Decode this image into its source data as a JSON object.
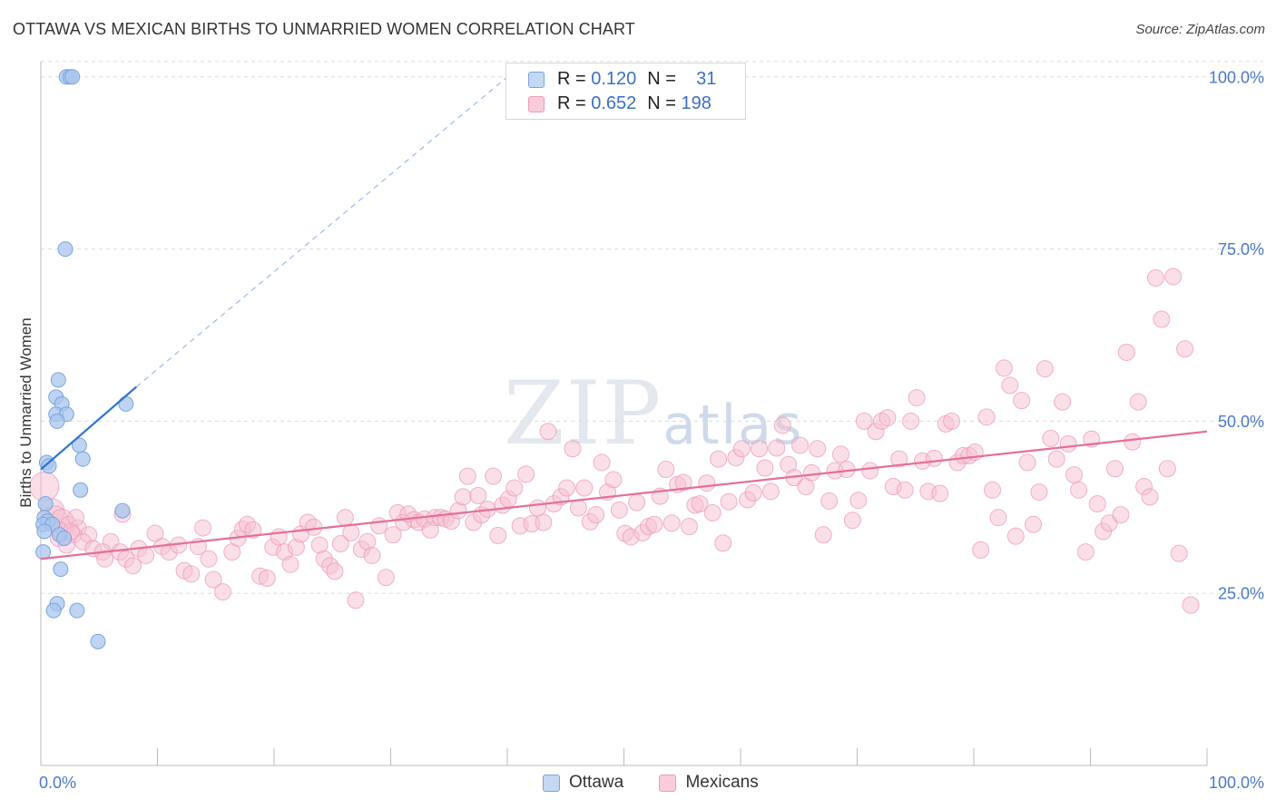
{
  "header": {
    "title": "OTTAWA VS MEXICAN BIRTHS TO UNMARRIED WOMEN CORRELATION CHART",
    "source": "Source: ZipAtlas.com"
  },
  "watermark": {
    "big": "ZIP",
    "small": "atlas"
  },
  "legend": {
    "rows": [
      {
        "r_label": "R =",
        "r_value": "0.120",
        "n_label": "N =",
        "n_value": "31"
      },
      {
        "r_label": "R =",
        "r_value": "0.652",
        "n_label": "N =",
        "n_value": "198"
      }
    ]
  },
  "bottom_legend": {
    "ottawa": "Ottawa",
    "mexicans": "Mexicans"
  },
  "colors": {
    "ottawa_fill": "#aac6ee",
    "ottawa_stroke": "#7aa3dd",
    "ottawa_line": "#2e72cf",
    "mexicans_fill": "#f6bfd2",
    "mexicans_stroke": "#ec9ab8",
    "mexicans_line": "#e46f9a",
    "tick_text": "#4a78c8",
    "grid": "#dcdcdc"
  },
  "chart_data": {
    "type": "scatter",
    "title": "OTTAWA VS MEXICAN BIRTHS TO UNMARRIED WOMEN CORRELATION CHART",
    "xlabel": "",
    "ylabel": "Births to Unmarried Women",
    "xlim": [
      0,
      100
    ],
    "ylim": [
      0,
      103
    ],
    "x_ticks": [
      {
        "value": 0,
        "label": "0.0%"
      },
      {
        "value": 100,
        "label": "100.0%"
      }
    ],
    "x_minor_ticks": [
      10,
      20,
      30,
      40,
      50,
      60,
      70,
      80,
      90
    ],
    "y_ticks": [
      {
        "value": 25,
        "label": "25.0%"
      },
      {
        "value": 50,
        "label": "50.0%"
      },
      {
        "value": 75,
        "label": "75.0%"
      },
      {
        "value": 100,
        "label": "100.0%"
      }
    ],
    "grid": "horizontal dashed",
    "legend_position": "top-center",
    "series": [
      {
        "name": "Ottawa",
        "R": 0.12,
        "N": 31,
        "trend": {
          "x0": 0,
          "y0": 43,
          "x1": 8.2,
          "y1": 55,
          "dashed_to": [
            40,
            100
          ]
        },
        "points": [
          [
            2.2,
            100
          ],
          [
            2.5,
            100
          ],
          [
            2.7,
            100
          ],
          [
            2.1,
            75
          ],
          [
            1.5,
            56
          ],
          [
            1.3,
            53.5
          ],
          [
            1.8,
            52.5
          ],
          [
            1.3,
            51
          ],
          [
            2.2,
            51
          ],
          [
            1.4,
            50
          ],
          [
            7.3,
            52.5
          ],
          [
            3.3,
            46.5
          ],
          [
            0.5,
            44
          ],
          [
            0.7,
            43.5
          ],
          [
            3.6,
            44.5
          ],
          [
            3.4,
            40
          ],
          [
            0.4,
            38
          ],
          [
            7.0,
            37
          ],
          [
            0.3,
            36
          ],
          [
            0.6,
            35.5
          ],
          [
            0.2,
            35
          ],
          [
            1.0,
            35
          ],
          [
            0.3,
            34
          ],
          [
            1.6,
            33.5
          ],
          [
            2.0,
            33
          ],
          [
            0.2,
            31
          ],
          [
            1.7,
            28.5
          ],
          [
            1.4,
            23.5
          ],
          [
            1.1,
            22.5
          ],
          [
            3.1,
            22.5
          ],
          [
            4.9,
            18
          ]
        ]
      },
      {
        "name": "Mexicans",
        "R": 0.652,
        "N": 198,
        "trend": {
          "x0": 0,
          "y0": 30,
          "x1": 100,
          "y1": 48.5
        },
        "points": [
          [
            0.3,
            40.5
          ],
          [
            1.0,
            37.0
          ],
          [
            1.2,
            36.0
          ],
          [
            1.8,
            35.5
          ],
          [
            2.4,
            35.0
          ],
          [
            3.2,
            34.5
          ],
          [
            2.8,
            33.5
          ],
          [
            4.1,
            33.5
          ],
          [
            1.5,
            33.0
          ],
          [
            3.6,
            32.5
          ],
          [
            6.0,
            32.5
          ],
          [
            2.2,
            32.0
          ],
          [
            4.5,
            31.5
          ],
          [
            5.3,
            31.0
          ],
          [
            6.8,
            31.0
          ],
          [
            8.4,
            31.5
          ],
          [
            9.0,
            30.5
          ],
          [
            5.5,
            30.0
          ],
          [
            7.3,
            30.0
          ],
          [
            7.9,
            29.0
          ],
          [
            1.6,
            34.2
          ],
          [
            2.6,
            34.0
          ],
          [
            7.0,
            36.5
          ],
          [
            3.0,
            36.0
          ],
          [
            9.8,
            33.7
          ],
          [
            10.4,
            31.8
          ],
          [
            11.0,
            31.0
          ],
          [
            11.8,
            32.0
          ],
          [
            12.3,
            28.3
          ],
          [
            12.9,
            27.8
          ],
          [
            13.5,
            31.8
          ],
          [
            13.9,
            34.5
          ],
          [
            14.4,
            30.0
          ],
          [
            14.8,
            27.0
          ],
          [
            15.6,
            25.2
          ],
          [
            16.4,
            31.0
          ],
          [
            16.9,
            33.0
          ],
          [
            17.3,
            34.3
          ],
          [
            17.7,
            35.0
          ],
          [
            18.2,
            34.2
          ],
          [
            18.8,
            27.5
          ],
          [
            19.4,
            27.2
          ],
          [
            19.9,
            31.7
          ],
          [
            20.4,
            33.2
          ],
          [
            20.9,
            31.0
          ],
          [
            21.4,
            29.2
          ],
          [
            21.9,
            31.7
          ],
          [
            22.3,
            33.6
          ],
          [
            22.9,
            35.3
          ],
          [
            23.4,
            34.6
          ],
          [
            23.9,
            32.0
          ],
          [
            24.3,
            30.0
          ],
          [
            24.8,
            29.0
          ],
          [
            25.2,
            28.2
          ],
          [
            25.7,
            32.2
          ],
          [
            26.1,
            36.0
          ],
          [
            26.6,
            33.8
          ],
          [
            27.0,
            24.0
          ],
          [
            27.5,
            31.4
          ],
          [
            28.0,
            32.5
          ],
          [
            28.4,
            30.5
          ],
          [
            29.0,
            34.8
          ],
          [
            29.6,
            27.3
          ],
          [
            30.2,
            33.5
          ],
          [
            30.6,
            36.7
          ],
          [
            31.1,
            35.3
          ],
          [
            31.5,
            36.5
          ],
          [
            32.0,
            35.7
          ],
          [
            32.4,
            35.3
          ],
          [
            32.9,
            35.8
          ],
          [
            33.4,
            34.2
          ],
          [
            33.8,
            36.0
          ],
          [
            34.3,
            36.0
          ],
          [
            34.7,
            35.8
          ],
          [
            35.2,
            35.5
          ],
          [
            35.8,
            37.0
          ],
          [
            36.2,
            39.0
          ],
          [
            36.6,
            42.0
          ],
          [
            37.1,
            35.3
          ],
          [
            37.5,
            39.2
          ],
          [
            37.8,
            36.4
          ],
          [
            38.3,
            37.2
          ],
          [
            38.8,
            42.0
          ],
          [
            39.2,
            33.4
          ],
          [
            39.6,
            37.8
          ],
          [
            40.1,
            38.7
          ],
          [
            40.6,
            40.3
          ],
          [
            41.1,
            34.8
          ],
          [
            41.6,
            42.3
          ],
          [
            42.1,
            35.1
          ],
          [
            42.6,
            37.4
          ],
          [
            43.1,
            35.3
          ],
          [
            43.5,
            48.5
          ],
          [
            44.0,
            38.0
          ],
          [
            44.6,
            39.0
          ],
          [
            45.1,
            40.3
          ],
          [
            45.6,
            46.0
          ],
          [
            46.1,
            37.4
          ],
          [
            46.6,
            40.3
          ],
          [
            47.1,
            35.4
          ],
          [
            47.6,
            36.4
          ],
          [
            48.1,
            44.0
          ],
          [
            48.6,
            39.7
          ],
          [
            49.1,
            41.5
          ],
          [
            49.6,
            37.1
          ],
          [
            50.1,
            33.7
          ],
          [
            50.6,
            33.2
          ],
          [
            51.1,
            38.2
          ],
          [
            51.6,
            33.8
          ],
          [
            52.1,
            34.7
          ],
          [
            52.6,
            35.0
          ],
          [
            53.1,
            39.1
          ],
          [
            53.6,
            43.0
          ],
          [
            54.1,
            35.2
          ],
          [
            54.6,
            40.8
          ],
          [
            55.1,
            41.1
          ],
          [
            55.6,
            34.7
          ],
          [
            56.1,
            37.8
          ],
          [
            56.5,
            38.0
          ],
          [
            57.1,
            41.0
          ],
          [
            57.6,
            36.7
          ],
          [
            58.1,
            44.5
          ],
          [
            58.5,
            32.3
          ],
          [
            59.0,
            38.3
          ],
          [
            59.6,
            44.7
          ],
          [
            60.1,
            46.0
          ],
          [
            60.6,
            38.6
          ],
          [
            61.1,
            39.6
          ],
          [
            61.6,
            46.0
          ],
          [
            62.1,
            43.2
          ],
          [
            62.6,
            39.8
          ],
          [
            63.1,
            46.1
          ],
          [
            63.6,
            49.4
          ],
          [
            64.1,
            43.7
          ],
          [
            64.6,
            41.8
          ],
          [
            65.1,
            46.5
          ],
          [
            65.6,
            40.5
          ],
          [
            66.1,
            42.5
          ],
          [
            66.6,
            46.0
          ],
          [
            67.1,
            33.5
          ],
          [
            67.6,
            38.4
          ],
          [
            68.1,
            42.8
          ],
          [
            68.6,
            45.2
          ],
          [
            69.1,
            43.0
          ],
          [
            69.6,
            35.6
          ],
          [
            70.1,
            38.5
          ],
          [
            70.6,
            50.0
          ],
          [
            71.1,
            42.8
          ],
          [
            71.6,
            48.5
          ],
          [
            72.1,
            50.0
          ],
          [
            72.6,
            50.5
          ],
          [
            73.1,
            40.5
          ],
          [
            73.6,
            44.5
          ],
          [
            74.1,
            40.0
          ],
          [
            74.6,
            50.0
          ],
          [
            75.1,
            53.4
          ],
          [
            75.6,
            44.2
          ],
          [
            76.1,
            39.8
          ],
          [
            76.6,
            44.6
          ],
          [
            77.1,
            39.5
          ],
          [
            77.6,
            49.6
          ],
          [
            78.1,
            50.0
          ],
          [
            78.6,
            44.0
          ],
          [
            79.1,
            45.0
          ],
          [
            79.6,
            45.0
          ],
          [
            80.1,
            45.5
          ],
          [
            80.6,
            31.3
          ],
          [
            81.1,
            50.6
          ],
          [
            81.6,
            40.0
          ],
          [
            82.1,
            36.0
          ],
          [
            82.6,
            57.7
          ],
          [
            83.1,
            55.2
          ],
          [
            83.6,
            33.3
          ],
          [
            84.1,
            53.0
          ],
          [
            84.6,
            44.0
          ],
          [
            85.1,
            35.0
          ],
          [
            85.6,
            39.7
          ],
          [
            86.1,
            57.6
          ],
          [
            86.6,
            47.5
          ],
          [
            87.1,
            44.5
          ],
          [
            87.6,
            52.8
          ],
          [
            88.1,
            46.7
          ],
          [
            88.6,
            42.2
          ],
          [
            89.0,
            40.0
          ],
          [
            89.6,
            31.0
          ],
          [
            90.1,
            47.4
          ],
          [
            90.6,
            38.0
          ],
          [
            91.1,
            34.0
          ],
          [
            91.6,
            35.2
          ],
          [
            92.1,
            43.1
          ],
          [
            92.6,
            36.4
          ],
          [
            93.1,
            60.0
          ],
          [
            93.6,
            47.0
          ],
          [
            94.1,
            52.8
          ],
          [
            94.6,
            40.5
          ],
          [
            95.1,
            39.0
          ],
          [
            95.6,
            70.8
          ],
          [
            96.1,
            64.8
          ],
          [
            96.6,
            43.1
          ],
          [
            97.1,
            71.0
          ],
          [
            97.6,
            30.8
          ],
          [
            98.1,
            60.5
          ],
          [
            98.6,
            23.3
          ]
        ]
      }
    ]
  }
}
